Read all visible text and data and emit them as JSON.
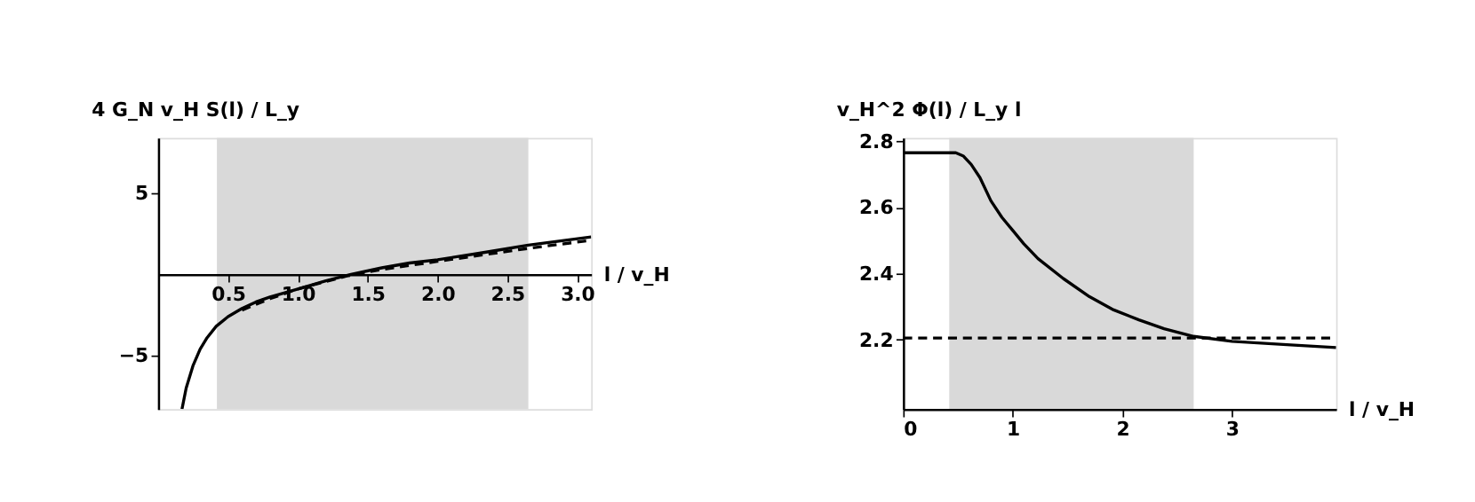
{
  "chart_data": [
    {
      "type": "line",
      "ylabel": "4 G_N v_H S(l) / L_y",
      "xlabel": "l / v_H",
      "xlim": [
        0,
        3.1
      ],
      "ylim": [
        -8.3,
        8.4
      ],
      "xticks": [
        0.5,
        {
          "value": 1,
          "label": "1.0"
        },
        1.5,
        {
          "value": 2,
          "label": "2.0"
        },
        2.5,
        {
          "value": 3,
          "label": "3.0"
        }
      ],
      "yticks": [
        {
          "value": -5,
          "label": "−5"
        },
        5
      ],
      "grid": false,
      "bands": [
        {
          "axis": "x",
          "from": 0.42,
          "to": 2.65,
          "color": "#d9d9d9"
        }
      ],
      "series": [
        {
          "color": "#000000",
          "line_style": "solid",
          "x": [
            0.17,
            0.2,
            0.25,
            0.3,
            0.35,
            0.415,
            0.5,
            0.6,
            0.7,
            0.8,
            1.0,
            1.2,
            1.38,
            1.6,
            1.8,
            2.0,
            2.3,
            2.65,
            3.1
          ],
          "values": [
            -8.3,
            -7.0,
            -5.6,
            -4.6,
            -3.9,
            -3.2,
            -2.6,
            -2.1,
            -1.7,
            -1.4,
            -0.9,
            -0.4,
            0,
            0.4,
            0.7,
            0.9,
            1.3,
            1.8,
            2.3
          ]
        },
        {
          "color": "#000000",
          "line_style": "dashed",
          "x": [
            0.6,
            0.8,
            1.0,
            1.35,
            1.6,
            2.0,
            2.65,
            3.1
          ],
          "values": [
            -2.2,
            -1.5,
            -0.9,
            -0.1,
            0.3,
            0.8,
            1.6,
            2.1
          ]
        }
      ]
    },
    {
      "type": "line",
      "ylabel": "v_H^2 Φ(l) / L_y l",
      "xlabel": "l / v_H",
      "xlim": [
        0,
        3.95
      ],
      "ylim": [
        1.99,
        2.81
      ],
      "xticks": [
        0,
        1,
        2,
        3
      ],
      "yticks": [
        2.2,
        2.4,
        2.6,
        2.8
      ],
      "grid": false,
      "bands": [
        {
          "axis": "x",
          "from": 0.42,
          "to": 2.65,
          "color": "#d9d9d9"
        }
      ],
      "series": [
        {
          "color": "#000000",
          "line_style": "solid",
          "x": [
            0,
            0.48,
            0.55,
            0.62,
            0.7,
            0.8,
            0.9,
            1.0,
            1.1,
            1.23,
            1.46,
            1.7,
            1.92,
            2.15,
            2.38,
            2.65,
            3.0,
            3.5,
            3.95
          ],
          "values": [
            2.765,
            2.765,
            2.755,
            2.73,
            2.69,
            2.62,
            2.57,
            2.53,
            2.49,
            2.445,
            2.385,
            2.33,
            2.29,
            2.26,
            2.233,
            2.21,
            2.195,
            2.185,
            2.176
          ]
        },
        {
          "color": "#000000",
          "line_style": "dashed",
          "x": [
            0,
            3.95
          ],
          "values": [
            2.205,
            2.205
          ]
        }
      ]
    }
  ]
}
